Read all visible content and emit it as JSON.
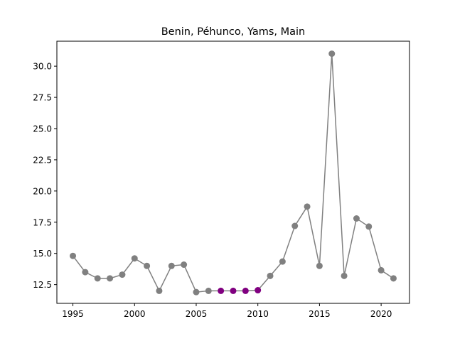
{
  "chart_data": {
    "type": "line",
    "title": "Benin, Péhunco, Yams, Main",
    "xlabel": "",
    "ylabel": "",
    "xlim": [
      1993.7,
      2022.3
    ],
    "ylim": [
      11.0,
      32.0
    ],
    "xticks": [
      1995,
      2000,
      2005,
      2010,
      2015,
      2020
    ],
    "yticks": [
      12.5,
      15.0,
      17.5,
      20.0,
      22.5,
      25.0,
      27.5,
      30.0
    ],
    "ytick_labels": [
      "12.5",
      "15.0",
      "17.5",
      "20.0",
      "22.5",
      "25.0",
      "27.5",
      "30.0"
    ],
    "grid": false,
    "line_color": "#808080",
    "marker_color": "#808080",
    "highlight_color": "#800080",
    "highlight_x": [
      2007,
      2008,
      2009,
      2010
    ],
    "series": [
      {
        "x": [
          1995,
          1996,
          1997,
          1998,
          1999,
          2000,
          2001,
          2002,
          2003,
          2004,
          2005,
          2006,
          2007,
          2008,
          2009,
          2010,
          2011,
          2012,
          2013,
          2014,
          2015,
          2016,
          2017,
          2018,
          2019,
          2020,
          2021
        ],
        "values": [
          14.8,
          13.5,
          13.0,
          13.0,
          13.3,
          14.6,
          14.0,
          12.0,
          14.0,
          14.1,
          11.9,
          12.0,
          12.0,
          12.0,
          12.0,
          12.05,
          13.2,
          14.35,
          17.2,
          18.75,
          14.0,
          31.0,
          13.2,
          17.8,
          17.15,
          13.65,
          13.0
        ]
      }
    ]
  }
}
